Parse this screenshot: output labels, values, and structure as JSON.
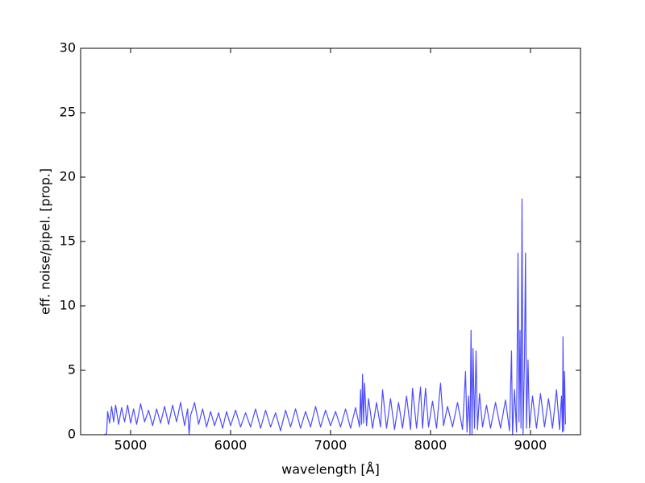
{
  "chart_data": {
    "type": "line",
    "xlabel": "wavelength [Å]",
    "ylabel": "eff. noise/pipel. [prop.]",
    "xlim": [
      4500,
      9500
    ],
    "ylim": [
      0,
      30
    ],
    "xticks": [
      5000,
      6000,
      7000,
      8000,
      9000
    ],
    "yticks": [
      0,
      5,
      10,
      15,
      20,
      25,
      30
    ],
    "color": "#4c4cff",
    "x": [
      4740,
      4760,
      4770,
      4790,
      4810,
      4830,
      4850,
      4880,
      4910,
      4940,
      4970,
      5000,
      5030,
      5060,
      5100,
      5140,
      5180,
      5220,
      5260,
      5300,
      5340,
      5380,
      5420,
      5460,
      5500,
      5540,
      5570,
      5585,
      5600,
      5640,
      5680,
      5720,
      5760,
      5800,
      5840,
      5880,
      5920,
      5960,
      6000,
      6050,
      6100,
      6150,
      6200,
      6250,
      6300,
      6350,
      6400,
      6450,
      6500,
      6550,
      6600,
      6650,
      6700,
      6750,
      6800,
      6850,
      6900,
      6950,
      7000,
      7050,
      7100,
      7150,
      7200,
      7250,
      7290,
      7300,
      7310,
      7320,
      7330,
      7340,
      7360,
      7380,
      7420,
      7460,
      7500,
      7520,
      7560,
      7600,
      7640,
      7680,
      7720,
      7760,
      7800,
      7820,
      7860,
      7900,
      7920,
      7950,
      7980,
      8020,
      8060,
      8100,
      8130,
      8170,
      8220,
      8270,
      8320,
      8350,
      8365,
      8380,
      8395,
      8405,
      8415,
      8425,
      8440,
      8455,
      8470,
      8490,
      8520,
      8560,
      8600,
      8650,
      8700,
      8750,
      8790,
      8810,
      8820,
      8840,
      8860,
      8875,
      8885,
      8895,
      8905,
      8915,
      8925,
      8940,
      8950,
      8960,
      8975,
      8990,
      9020,
      9060,
      9100,
      9140,
      9180,
      9220,
      9260,
      9290,
      9310,
      9320,
      9325,
      9332,
      9340,
      9350
    ],
    "values": [
      0,
      0.1,
      1.8,
      0.9,
      2.2,
      1.0,
      2.3,
      0.8,
      2.1,
      1.0,
      2.3,
      0.9,
      2.0,
      0.8,
      2.4,
      1.0,
      1.9,
      0.7,
      2.0,
      0.9,
      2.2,
      0.8,
      2.3,
      1.0,
      2.5,
      0.7,
      2.0,
      0,
      1.5,
      2.5,
      0.8,
      2.0,
      0.6,
      1.8,
      0.7,
      1.7,
      0.5,
      1.8,
      0.7,
      1.9,
      0.6,
      1.7,
      0.6,
      2.0,
      0.5,
      1.9,
      0.6,
      1.7,
      0.3,
      1.9,
      0.6,
      2.0,
      0.5,
      1.8,
      0.6,
      2.2,
      0.6,
      1.9,
      0.7,
      1.8,
      0.6,
      2.0,
      0.5,
      2.1,
      0.6,
      3.5,
      0.8,
      4.7,
      0.9,
      4.0,
      0.7,
      2.8,
      0.5,
      2.5,
      0.6,
      3.5,
      0.5,
      2.8,
      0.4,
      2.5,
      0.5,
      3.0,
      0.4,
      3.6,
      0.5,
      3.7,
      0.5,
      3.6,
      0.6,
      2.6,
      0.5,
      4.0,
      0.7,
      2.2,
      0.6,
      2.5,
      0.4,
      4.9,
      0.2,
      3.0,
      0,
      8.1,
      0,
      6.7,
      0.5,
      6.5,
      0.4,
      3.2,
      0.6,
      2.3,
      0.5,
      2.5,
      0.5,
      2.7,
      0.3,
      6.5,
      0,
      3.5,
      0.2,
      14.1,
      1.0,
      8.1,
      0.5,
      18.3,
      0,
      6.0,
      14.1,
      0.5,
      5.8,
      0.5,
      3.0,
      0.5,
      3.2,
      0.6,
      2.8,
      0.5,
      3.5,
      0.4,
      3.0,
      0.2,
      7.6,
      0.3,
      4.9,
      0.8
    ]
  }
}
